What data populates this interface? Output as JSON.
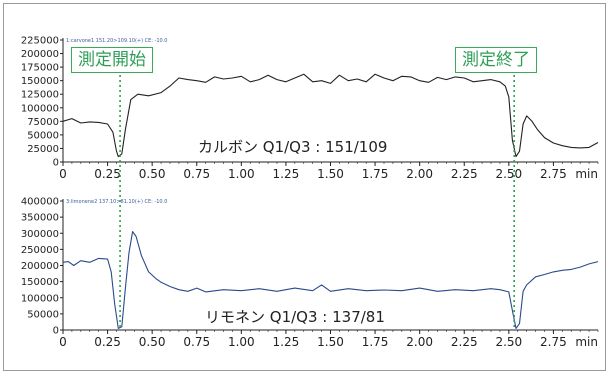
{
  "annotations": {
    "start": "測定開始",
    "end": "測定終了"
  },
  "colors": {
    "top_line": "#222222",
    "bottom_line": "#2a4a8c",
    "marker": "#2e9e57"
  },
  "chart_data": [
    {
      "type": "line",
      "header": "1:carvone1 151.20>109.10(+) CE: -10.0",
      "caption": "カルボン Q1/Q3 : 151/109",
      "xunit": "min",
      "xlim": [
        0,
        3.0
      ],
      "ylim": [
        0,
        225000
      ],
      "yticks": [
        0,
        25000,
        50000,
        75000,
        100000,
        125000,
        150000,
        175000,
        200000,
        225000
      ],
      "xticks": [
        "0",
        "0.25",
        "0.50",
        "0.75",
        "1.00",
        "1.25",
        "1.50",
        "1.75",
        "2.00",
        "2.25",
        "2.50",
        "2.75"
      ],
      "markers_x": [
        0.32,
        2.53
      ],
      "x": [
        0,
        0.05,
        0.1,
        0.15,
        0.2,
        0.25,
        0.28,
        0.3,
        0.31,
        0.33,
        0.35,
        0.38,
        0.42,
        0.48,
        0.55,
        0.6,
        0.65,
        0.7,
        0.75,
        0.8,
        0.85,
        0.9,
        0.95,
        1.0,
        1.05,
        1.1,
        1.15,
        1.2,
        1.25,
        1.3,
        1.35,
        1.4,
        1.45,
        1.5,
        1.55,
        1.6,
        1.65,
        1.7,
        1.75,
        1.8,
        1.85,
        1.9,
        1.95,
        2.0,
        2.05,
        2.1,
        2.15,
        2.2,
        2.25,
        2.3,
        2.35,
        2.4,
        2.45,
        2.48,
        2.5,
        2.52,
        2.54,
        2.56,
        2.58,
        2.6,
        2.63,
        2.66,
        2.7,
        2.75,
        2.8,
        2.85,
        2.9,
        2.95,
        3.0
      ],
      "y": [
        75000,
        80000,
        72000,
        74000,
        73000,
        70000,
        55000,
        20000,
        10000,
        15000,
        60000,
        115000,
        125000,
        122000,
        128000,
        140000,
        155000,
        152000,
        150000,
        147000,
        157000,
        153000,
        155000,
        158000,
        148000,
        152000,
        160000,
        152000,
        148000,
        155000,
        162000,
        148000,
        150000,
        145000,
        160000,
        150000,
        153000,
        148000,
        162000,
        155000,
        150000,
        158000,
        157000,
        150000,
        147000,
        156000,
        152000,
        157000,
        155000,
        148000,
        150000,
        152000,
        148000,
        140000,
        120000,
        40000,
        10000,
        20000,
        70000,
        85000,
        75000,
        60000,
        45000,
        35000,
        30000,
        27000,
        26000,
        27000,
        36000
      ]
    },
    {
      "type": "line",
      "header": "3:limonene2 137.10>81.10(+) CE: -10.0",
      "caption": "リモネン Q1/Q3 : 137/81",
      "xunit": "min",
      "xlim": [
        0,
        3.0
      ],
      "ylim": [
        0,
        400000
      ],
      "yticks": [
        0,
        50000,
        100000,
        150000,
        200000,
        250000,
        300000,
        350000,
        400000
      ],
      "xticks": [
        "0",
        "0.25",
        "0.50",
        "0.75",
        "1.00",
        "1.25",
        "1.50",
        "1.75",
        "2.00",
        "2.25",
        "2.50",
        "2.75"
      ],
      "markers_x": [
        0.32,
        2.53
      ],
      "x": [
        0,
        0.03,
        0.06,
        0.1,
        0.15,
        0.2,
        0.25,
        0.27,
        0.29,
        0.31,
        0.33,
        0.35,
        0.37,
        0.39,
        0.41,
        0.44,
        0.48,
        0.52,
        0.55,
        0.6,
        0.65,
        0.7,
        0.75,
        0.8,
        0.9,
        1.0,
        1.1,
        1.2,
        1.3,
        1.4,
        1.45,
        1.5,
        1.6,
        1.7,
        1.8,
        1.9,
        2.0,
        2.1,
        2.2,
        2.3,
        2.4,
        2.45,
        2.5,
        2.52,
        2.54,
        2.56,
        2.58,
        2.6,
        2.65,
        2.7,
        2.75,
        2.8,
        2.85,
        2.9,
        2.95,
        3.0
      ],
      "y": [
        210000,
        212000,
        200000,
        215000,
        210000,
        222000,
        220000,
        180000,
        80000,
        5000,
        10000,
        130000,
        240000,
        305000,
        290000,
        230000,
        180000,
        160000,
        148000,
        135000,
        125000,
        120000,
        130000,
        118000,
        125000,
        122000,
        128000,
        120000,
        130000,
        122000,
        140000,
        120000,
        128000,
        122000,
        124000,
        122000,
        130000,
        120000,
        125000,
        122000,
        128000,
        125000,
        118000,
        60000,
        5000,
        20000,
        120000,
        140000,
        165000,
        172000,
        180000,
        185000,
        188000,
        195000,
        205000,
        212000
      ]
    }
  ]
}
